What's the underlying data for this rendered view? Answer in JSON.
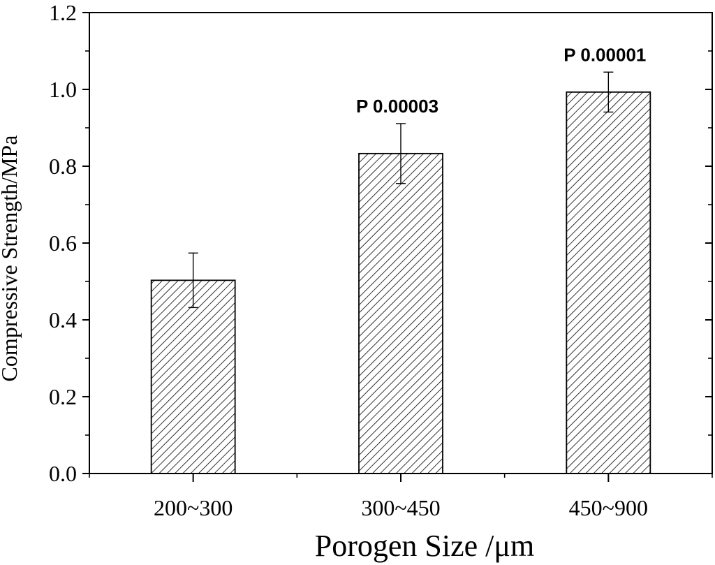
{
  "chart_data": {
    "type": "bar",
    "categories": [
      "200~300",
      "300~450",
      "450~900"
    ],
    "values": [
      0.503,
      0.833,
      0.993
    ],
    "errors": [
      0.071,
      0.078,
      0.052
    ],
    "annotations": [
      "",
      "P 0.00003",
      "P 0.00001"
    ],
    "xlabel": "Porogen Size /μm",
    "ylabel": "Compressive Strength/MPa",
    "ylim": [
      0,
      1.2
    ],
    "yticks": [
      "0.0",
      "0.2",
      "0.4",
      "0.6",
      "0.8",
      "1.0",
      "1.2"
    ],
    "bar_pattern": "diagonal-hatch",
    "grid": false,
    "legend": "none"
  }
}
